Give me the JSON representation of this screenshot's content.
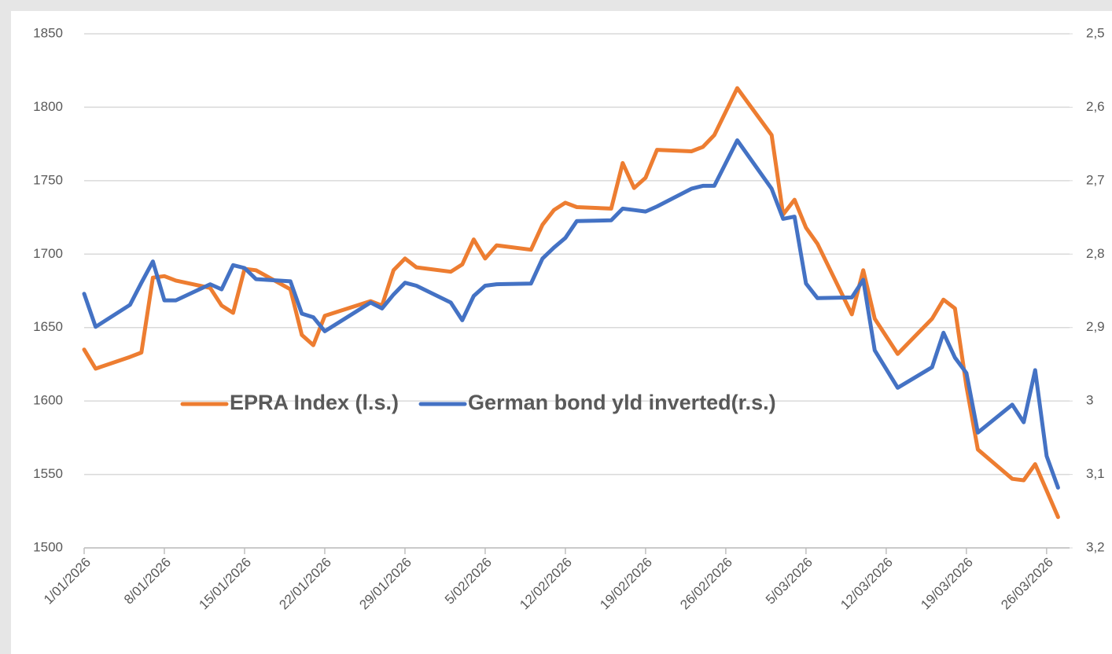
{
  "chart_data": {
    "type": "line",
    "x": [
      "2026-01-01",
      "2026-01-02",
      "2026-01-05",
      "2026-01-06",
      "2026-01-07",
      "2026-01-08",
      "2026-01-09",
      "2026-01-12",
      "2026-01-13",
      "2026-01-14",
      "2026-01-15",
      "2026-01-16",
      "2026-01-19",
      "2026-01-20",
      "2026-01-21",
      "2026-01-22",
      "2026-01-26",
      "2026-01-27",
      "2026-01-28",
      "2026-01-29",
      "2026-01-30",
      "2026-02-02",
      "2026-02-03",
      "2026-02-04",
      "2026-02-05",
      "2026-02-06",
      "2026-02-09",
      "2026-02-10",
      "2026-02-11",
      "2026-02-12",
      "2026-02-13",
      "2026-02-16",
      "2026-02-17",
      "2026-02-18",
      "2026-02-19",
      "2026-02-20",
      "2026-02-23",
      "2026-02-24",
      "2026-02-25",
      "2026-02-27",
      "2026-03-02",
      "2026-03-03",
      "2026-03-04",
      "2026-03-05",
      "2026-03-06",
      "2026-03-09",
      "2026-03-10",
      "2026-03-11",
      "2026-03-13",
      "2026-03-16",
      "2026-03-17",
      "2026-03-18",
      "2026-03-19",
      "2026-03-20",
      "2026-03-23",
      "2026-03-24",
      "2026-03-25",
      "2026-03-26",
      "2026-03-27"
    ],
    "series": [
      {
        "name": "EPRA Index (l.s.)",
        "color": "#ed7d31",
        "values": [
          1635,
          1622,
          1630,
          1633,
          1684,
          1685,
          1682,
          1677,
          1665,
          1660,
          1690,
          1689,
          1676,
          1645,
          1638,
          1658,
          1668,
          1665,
          1689,
          1697,
          1691,
          1688,
          1693,
          1710,
          1697,
          1706,
          1703,
          1720,
          1730,
          1735,
          1732,
          1731,
          1762,
          1745,
          1752,
          1771,
          1770,
          1773,
          1781,
          1813,
          1781,
          1727,
          1737,
          1718,
          1707,
          1659,
          1689,
          1656,
          1632,
          1656,
          1669,
          1663,
          1610,
          1567,
          1547,
          1546,
          1557,
          1539,
          1521
        ]
      },
      {
        "name": "German bond yld inverted(r.s.)",
        "color": "#4472c4",
        "axis": "y2",
        "values": [
          2.854,
          2.899,
          2.869,
          2.839,
          2.81,
          2.863,
          2.863,
          2.841,
          2.848,
          2.815,
          2.819,
          2.834,
          2.837,
          2.881,
          2.886,
          2.905,
          2.866,
          2.874,
          2.855,
          2.839,
          2.843,
          2.866,
          2.89,
          2.857,
          2.843,
          2.841,
          2.84,
          2.806,
          2.791,
          2.778,
          2.755,
          2.754,
          2.738,
          2.74,
          2.742,
          2.735,
          2.711,
          2.707,
          2.707,
          2.645,
          2.711,
          2.752,
          2.749,
          2.84,
          2.86,
          2.859,
          2.835,
          2.931,
          2.982,
          2.954,
          2.907,
          2.941,
          2.962,
          3.043,
          3.005,
          3.029,
          2.958,
          3.075,
          3.118
        ]
      }
    ],
    "xlim": [
      "2026-01-01",
      "2026-03-28"
    ],
    "xticks": [
      {
        "value": "2026-01-01",
        "label": "1/01/2026"
      },
      {
        "value": "2026-01-08",
        "label": "8/01/2026"
      },
      {
        "value": "2026-01-15",
        "label": "15/01/2026"
      },
      {
        "value": "2026-01-22",
        "label": "22/01/2026"
      },
      {
        "value": "2026-01-29",
        "label": "29/01/2026"
      },
      {
        "value": "2026-02-05",
        "label": "5/02/2026"
      },
      {
        "value": "2026-02-12",
        "label": "12/02/2026"
      },
      {
        "value": "2026-02-19",
        "label": "19/02/2026"
      },
      {
        "value": "2026-02-26",
        "label": "26/02/2026"
      },
      {
        "value": "2026-03-05",
        "label": "5/03/2026"
      },
      {
        "value": "2026-03-12",
        "label": "12/03/2026"
      },
      {
        "value": "2026-03-19",
        "label": "19/03/2026"
      },
      {
        "value": "2026-03-26",
        "label": "26/03/2026"
      }
    ],
    "ylim": [
      1500,
      1850
    ],
    "yticks": [
      1500,
      1550,
      1600,
      1650,
      1700,
      1750,
      1800,
      1850
    ],
    "y2lim": [
      3.2,
      2.5
    ],
    "y2ticks": [
      {
        "value": 3.2,
        "label": "3,2"
      },
      {
        "value": 3.1,
        "label": "3,1"
      },
      3,
      {
        "value": 2.9,
        "label": "2,9"
      },
      {
        "value": 2.8,
        "label": "2,8"
      },
      {
        "value": 2.7,
        "label": "2,7"
      },
      {
        "value": 2.6,
        "label": "2,6"
      },
      {
        "value": 2.5,
        "label": "2,5"
      }
    ],
    "grid": true,
    "legend": "center"
  }
}
